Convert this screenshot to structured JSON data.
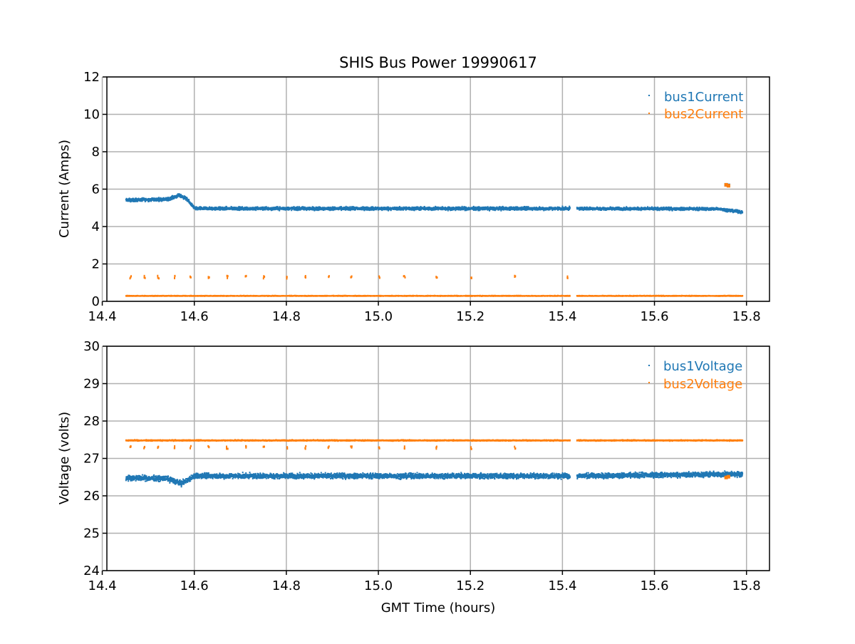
{
  "chart_data": [
    {
      "type": "scatter",
      "title": "SHIS Bus Power 19990617",
      "xlabel": "",
      "ylabel": "Current (Amps)",
      "xlim": [
        14.41,
        15.85
      ],
      "ylim": [
        0,
        12
      ],
      "xticks": [
        14.4,
        14.6,
        14.8,
        15.0,
        15.2,
        15.4,
        15.6,
        15.8
      ],
      "xtick_labels": [
        "14.4",
        "14.6",
        "14.8",
        "15.0",
        "15.2",
        "15.4",
        "15.6",
        "15.8"
      ],
      "yticks": [
        0,
        2,
        4,
        6,
        8,
        10,
        12
      ],
      "ytick_labels": [
        "0",
        "2",
        "4",
        "6",
        "8",
        "10",
        "12"
      ],
      "grid": true,
      "legend": "top-right",
      "x_range": [
        14.45,
        15.79
      ],
      "gap": [
        15.415,
        15.43
      ],
      "series": [
        {
          "name": "bus1Current",
          "color": "#1f77b4",
          "segments": [
            {
              "x": [
                14.45,
                15.415
              ],
              "profile": [
                [
                  14.45,
                  5.45
                ],
                [
                  14.54,
                  5.5
                ],
                [
                  14.565,
                  5.7
                ],
                [
                  14.58,
                  5.55
                ],
                [
                  14.6,
                  5.0
                ],
                [
                  15.415,
                  5.0
                ]
              ],
              "spread": 0.25
            },
            {
              "x": [
                15.43,
                15.79
              ],
              "profile": [
                [
                  15.43,
                  5.0
                ],
                [
                  15.74,
                  4.98
                ],
                [
                  15.79,
                  4.8
                ]
              ],
              "spread": 0.22
            }
          ],
          "isolated": [
            [
              15.755,
              6.25
            ],
            [
              15.76,
              6.22
            ]
          ]
        },
        {
          "name": "bus2Current",
          "color": "#ff7f0e",
          "segments": [
            {
              "x": [
                14.45,
                15.415
              ],
              "profile": [
                [
                  14.45,
                  0.33
                ],
                [
                  15.415,
                  0.33
                ]
              ],
              "spread": 0.05
            },
            {
              "x": [
                15.43,
                15.79
              ],
              "profile": [
                [
                  15.43,
                  0.33
                ],
                [
                  15.79,
                  0.33
                ]
              ],
              "spread": 0.05
            }
          ],
          "spikes": {
            "x": [
              14.46,
              14.49,
              14.52,
              14.555,
              14.59,
              14.63,
              14.67,
              14.71,
              14.75,
              14.8,
              14.84,
              14.89,
              14.94,
              15.0,
              15.055,
              15.125,
              15.2,
              15.295,
              15.41
            ],
            "y": 1.35
          },
          "isolated": [
            [
              15.755,
              6.25
            ],
            [
              15.76,
              6.2
            ]
          ]
        }
      ]
    },
    {
      "type": "scatter",
      "title": "",
      "xlabel": "GMT Time (hours)",
      "ylabel": "Voltage (volts)",
      "xlim": [
        14.41,
        15.85
      ],
      "ylim": [
        24,
        30
      ],
      "xticks": [
        14.4,
        14.6,
        14.8,
        15.0,
        15.2,
        15.4,
        15.6,
        15.8
      ],
      "xtick_labels": [
        "14.4",
        "14.6",
        "14.8",
        "15.0",
        "15.2",
        "15.4",
        "15.6",
        "15.8"
      ],
      "yticks": [
        24,
        25,
        26,
        27,
        28,
        29,
        30
      ],
      "ytick_labels": [
        "24",
        "25",
        "26",
        "27",
        "28",
        "29",
        "30"
      ],
      "grid": true,
      "legend": "top-right",
      "x_range": [
        14.45,
        15.79
      ],
      "gap": [
        15.415,
        15.43
      ],
      "series": [
        {
          "name": "bus1Voltage",
          "color": "#1f77b4",
          "segments": [
            {
              "x": [
                14.45,
                15.415
              ],
              "profile": [
                [
                  14.45,
                  26.5
                ],
                [
                  14.54,
                  26.48
                ],
                [
                  14.57,
                  26.35
                ],
                [
                  14.6,
                  26.55
                ],
                [
                  15.415,
                  26.55
                ]
              ],
              "spread": 0.2
            },
            {
              "x": [
                15.43,
                15.79
              ],
              "profile": [
                [
                  15.43,
                  26.55
                ],
                [
                  15.79,
                  26.6
                ]
              ],
              "spread": 0.2
            }
          ],
          "isolated": []
        },
        {
          "name": "bus2Voltage",
          "color": "#ff7f0e",
          "segments": [
            {
              "x": [
                14.45,
                15.415
              ],
              "profile": [
                [
                  14.45,
                  27.5
                ],
                [
                  15.415,
                  27.5
                ]
              ],
              "spread": 0.04
            },
            {
              "x": [
                15.43,
                15.79
              ],
              "profile": [
                [
                  15.43,
                  27.5
                ],
                [
                  15.79,
                  27.5
                ]
              ],
              "spread": 0.04
            }
          ],
          "spikes": {
            "x": [
              14.46,
              14.49,
              14.52,
              14.555,
              14.59,
              14.63,
              14.67,
              14.71,
              14.75,
              14.8,
              14.84,
              14.89,
              14.94,
              15.0,
              15.055,
              15.125,
              15.2,
              15.295
            ],
            "y": 27.32
          },
          "isolated": [
            [
              15.755,
              26.5
            ],
            [
              15.76,
              26.52
            ]
          ]
        }
      ]
    }
  ]
}
